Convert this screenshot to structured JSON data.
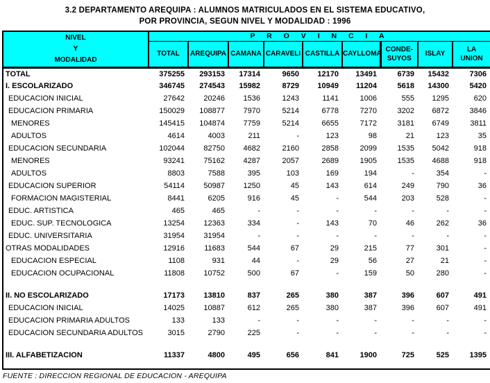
{
  "title": {
    "line1": "3.2  DEPARTAMENTO AREQUIPA :  ALUMNOS MATRICULADOS EN EL SISTEMA EDUCATIVO,",
    "line2": "POR PROVINCIA, SEGUN NIVEL Y MODALIDAD : 1996"
  },
  "colors": {
    "header_bg": "#00ffff",
    "border": "#000000",
    "text": "#000000"
  },
  "table": {
    "corner_header_lines": [
      "NIVEL",
      "Y",
      "MODALIDAD"
    ],
    "province_label": "P R O V I N C I A",
    "columns": [
      "TOTAL",
      "AREQUIPA",
      "CAMANA",
      "CARAVELI",
      "CASTILLA",
      "CAYLLOMA",
      "CONDE-\nSUYOS",
      "ISLAY",
      "LA\nUNION"
    ],
    "rows": [
      {
        "label": "TOTAL",
        "bold": true,
        "indent": 0,
        "values": [
          "375255",
          "293153",
          "17314",
          "9650",
          "12170",
          "13491",
          "6739",
          "15432",
          "7306"
        ]
      },
      {
        "label": "I. ESCOLARIZADO",
        "bold": true,
        "indent": 0,
        "values": [
          "346745",
          "274543",
          "15982",
          "8729",
          "10949",
          "11204",
          "5618",
          "14300",
          "5420"
        ]
      },
      {
        "label": "EDUCACION INICIAL",
        "bold": false,
        "indent": 1,
        "values": [
          "27642",
          "20246",
          "1536",
          "1243",
          "1141",
          "1006",
          "555",
          "1295",
          "620"
        ]
      },
      {
        "label": "EDUCACION PRIMARIA",
        "bold": false,
        "indent": 1,
        "values": [
          "150029",
          "108877",
          "7970",
          "5214",
          "6778",
          "7270",
          "3202",
          "6872",
          "3846"
        ]
      },
      {
        "label": "MENORES",
        "bold": false,
        "indent": 2,
        "values": [
          "145415",
          "104874",
          "7759",
          "5214",
          "6655",
          "7172",
          "3181",
          "6749",
          "3811"
        ]
      },
      {
        "label": "ADULTOS",
        "bold": false,
        "indent": 2,
        "values": [
          "4614",
          "4003",
          "211",
          "-",
          "123",
          "98",
          "21",
          "123",
          "35"
        ]
      },
      {
        "label": "EDUCACION SECUNDARIA",
        "bold": false,
        "indent": 1,
        "values": [
          "102044",
          "82750",
          "4682",
          "2160",
          "2858",
          "2099",
          "1535",
          "5042",
          "918"
        ]
      },
      {
        "label": "MENORES",
        "bold": false,
        "indent": 2,
        "values": [
          "93241",
          "75162",
          "4287",
          "2057",
          "2689",
          "1905",
          "1535",
          "4688",
          "918"
        ]
      },
      {
        "label": "ADULTOS",
        "bold": false,
        "indent": 2,
        "values": [
          "8803",
          "7588",
          "395",
          "103",
          "169",
          "194",
          "-",
          "354",
          "-"
        ]
      },
      {
        "label": "EDUCACION SUPERIOR",
        "bold": false,
        "indent": 1,
        "values": [
          "54114",
          "50987",
          "1250",
          "45",
          "143",
          "614",
          "249",
          "790",
          "36"
        ]
      },
      {
        "label": "FORMACION MAGISTERIAL",
        "bold": false,
        "indent": 2,
        "values": [
          "8441",
          "6205",
          "916",
          "45",
          "-",
          "544",
          "203",
          "528",
          "-"
        ]
      },
      {
        "label": "EDUC. ARTISTICA",
        "bold": false,
        "indent": 1,
        "values": [
          "465",
          "465",
          "-",
          "-",
          "-",
          "-",
          "-",
          "-",
          "-"
        ]
      },
      {
        "label": "EDUC. SUP. TECNOLOGICA",
        "bold": false,
        "indent": 2,
        "values": [
          "13254",
          "12363",
          "334",
          "-",
          "143",
          "70",
          "46",
          "262",
          "36"
        ]
      },
      {
        "label": "EDUC. UNIVERSITARIA",
        "bold": false,
        "indent": 1,
        "values": [
          "31954",
          "31954",
          "-",
          "-",
          "-",
          "-",
          "-",
          "-",
          "-"
        ]
      },
      {
        "label": "OTRAS MODALIDADES",
        "bold": false,
        "indent": 0,
        "values": [
          "12916",
          "11683",
          "544",
          "67",
          "29",
          "215",
          "77",
          "301",
          "-"
        ]
      },
      {
        "label": "EDUCACION ESPECIAL",
        "bold": false,
        "indent": 2,
        "values": [
          "1108",
          "931",
          "44",
          "-",
          "29",
          "56",
          "27",
          "21",
          "-"
        ]
      },
      {
        "label": "EDUCACION OCUPACIONAL",
        "bold": false,
        "indent": 2,
        "values": [
          "11808",
          "10752",
          "500",
          "67",
          "-",
          "159",
          "50",
          "280",
          "-"
        ]
      },
      {
        "type": "spacer"
      },
      {
        "label": "II. NO ESCOLARIZADO",
        "bold": true,
        "indent": 0,
        "values": [
          "17173",
          "13810",
          "837",
          "265",
          "380",
          "387",
          "396",
          "607",
          "491"
        ]
      },
      {
        "label": "EDUCACION INICIAL",
        "bold": false,
        "indent": 1,
        "values": [
          "14025",
          "10887",
          "612",
          "265",
          "380",
          "387",
          "396",
          "607",
          "491"
        ]
      },
      {
        "label": "EDUCACION PRIMARIA ADULTOS",
        "bold": false,
        "indent": 1,
        "values": [
          "133",
          "133",
          "-",
          "-",
          "-",
          "-",
          "-",
          "-",
          "-"
        ]
      },
      {
        "label": "EDUCACION SECUNDARIA ADULTOS",
        "bold": false,
        "indent": 1,
        "values": [
          "3015",
          "2790",
          "225",
          "-",
          "-",
          "-",
          "-",
          "-",
          "-"
        ]
      },
      {
        "type": "spacer"
      },
      {
        "label": "III. ALFABETIZACION",
        "bold": true,
        "indent": 0,
        "values": [
          "11337",
          "4800",
          "495",
          "656",
          "841",
          "1900",
          "725",
          "525",
          "1395"
        ]
      }
    ]
  },
  "footer": {
    "source": "FUENTE : DIRECCION REGIONAL DE EDUCACION - AREQUIPA"
  }
}
